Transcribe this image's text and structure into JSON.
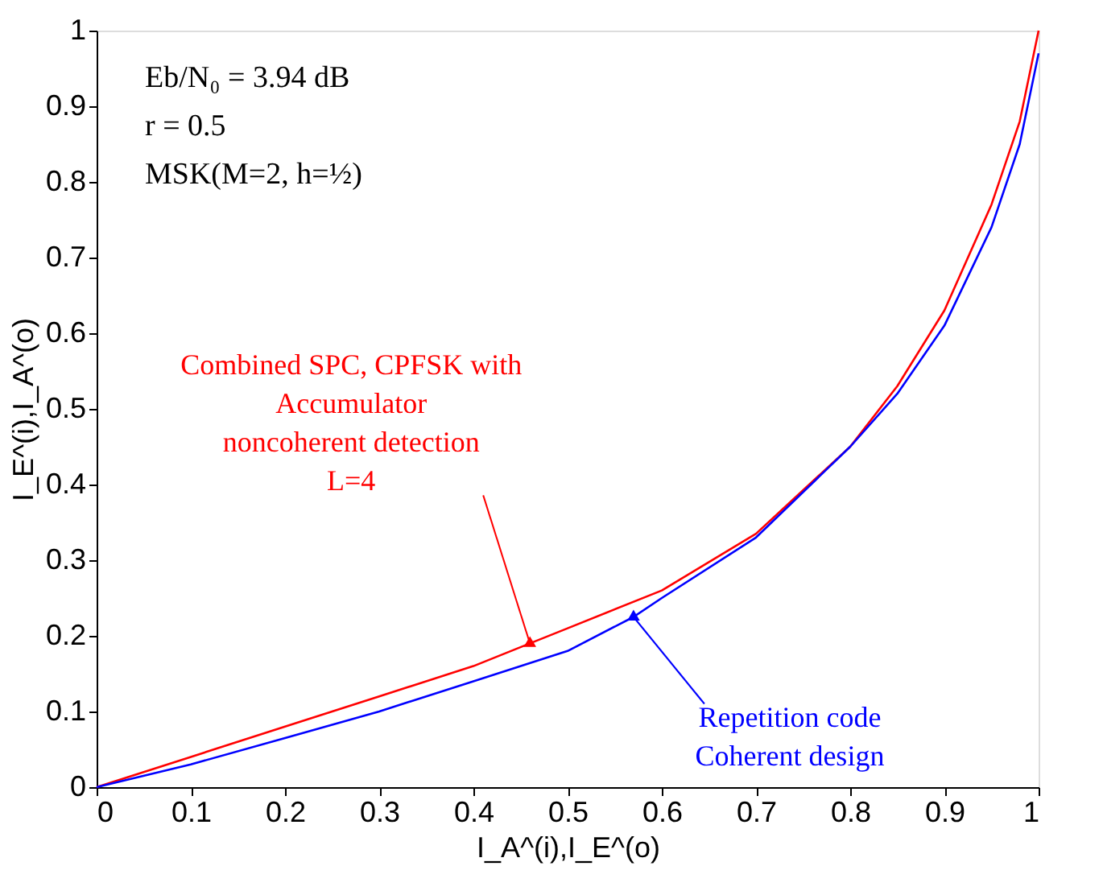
{
  "chart_data": {
    "type": "line",
    "xlabel": "I_A^(i),I_E^(o)",
    "ylabel": "I_E^(i),I_A^(o)",
    "xlim": [
      0,
      1
    ],
    "ylim": [
      0,
      1
    ],
    "xticks": [
      0,
      0.1,
      0.2,
      0.3,
      0.4,
      0.5,
      0.6,
      0.7,
      0.8,
      0.9,
      1
    ],
    "yticks": [
      0,
      0.1,
      0.2,
      0.3,
      0.4,
      0.5,
      0.6,
      0.7,
      0.8,
      0.9,
      1
    ],
    "grid": false,
    "legend": false,
    "marker": "none",
    "line_style": "solid",
    "series": [
      {
        "color": "#ff0000",
        "x": [
          0,
          0.1,
          0.2,
          0.3,
          0.4,
          0.46,
          0.5,
          0.6,
          0.7,
          0.8,
          0.85,
          0.9,
          0.95,
          0.98,
          1
        ],
        "values": [
          0,
          0.04,
          0.08,
          0.12,
          0.16,
          0.19,
          0.21,
          0.26,
          0.335,
          0.45,
          0.53,
          0.63,
          0.77,
          0.88,
          1
        ]
      },
      {
        "color": "#0000ff",
        "x": [
          0,
          0.1,
          0.2,
          0.3,
          0.4,
          0.5,
          0.57,
          0.6,
          0.7,
          0.8,
          0.85,
          0.9,
          0.95,
          0.98,
          1
        ],
        "values": [
          0,
          0.03,
          0.065,
          0.1,
          0.14,
          0.18,
          0.225,
          0.25,
          0.33,
          0.45,
          0.52,
          0.61,
          0.74,
          0.85,
          0.97
        ]
      }
    ],
    "annotations": [
      "Eb/N₀ = 3.94 dB",
      "r = 0.5",
      "MSK(M=2, h=½)",
      {
        "text": "Combined SPC, CPFSK  with\nAccumulator\nnoncoherent detection\nL=4",
        "x": 0.46,
        "y": 0.19
      },
      {
        "text": "Repetition code\nCoherent design",
        "x": 0.57,
        "y": 0.225
      }
    ]
  }
}
